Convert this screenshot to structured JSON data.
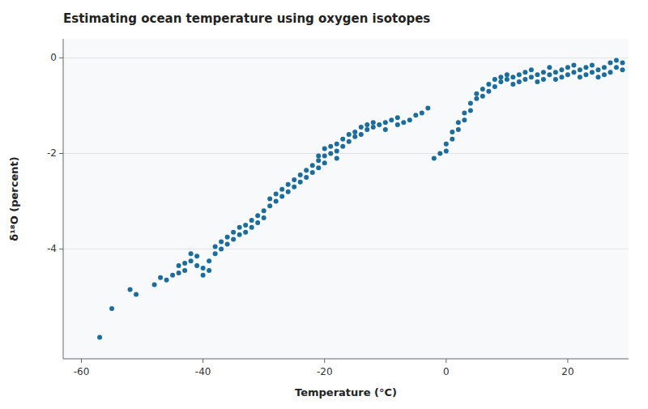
{
  "chart_data": {
    "type": "scatter",
    "title": "Estimating ocean temperature using oxygen isotopes",
    "xlabel": "Temperature (°C)",
    "ylabel": "δ¹⁸O (percent)",
    "xlim": [
      -63,
      30
    ],
    "ylim": [
      -6.3,
      0.4
    ],
    "xticks": [
      -60,
      -40,
      -20,
      0,
      20
    ],
    "yticks": [
      0,
      -2,
      -4
    ],
    "grid": "y",
    "color": "#1c6d9c",
    "x": [
      -57,
      -55,
      -52,
      -51,
      -48,
      -47,
      -46,
      -45,
      -44,
      -44,
      -43,
      -43,
      -42,
      -42,
      -41,
      -41,
      -40,
      -40,
      -39,
      -39,
      -38,
      -38,
      -37,
      -37,
      -36,
      -36,
      -35,
      -35,
      -34,
      -34,
      -33,
      -33,
      -32,
      -32,
      -31,
      -31,
      -30,
      -30,
      -29,
      -29,
      -28,
      -28,
      -27,
      -27,
      -26,
      -26,
      -25,
      -25,
      -24,
      -24,
      -23,
      -23,
      -22,
      -22,
      -21,
      -21,
      -21,
      -20,
      -20,
      -20,
      -19,
      -19,
      -18,
      -18,
      -18,
      -17,
      -17,
      -16,
      -16,
      -15,
      -15,
      -14,
      -14,
      -13,
      -13,
      -12,
      -12,
      -11,
      -10,
      -10,
      -9,
      -8,
      -8,
      -7,
      -6,
      -5,
      -4,
      -3,
      -2,
      -1,
      0,
      0,
      1,
      1,
      2,
      2,
      3,
      3,
      4,
      4,
      5,
      5,
      6,
      6,
      7,
      7,
      8,
      8,
      9,
      9,
      10,
      10,
      11,
      11,
      12,
      12,
      13,
      13,
      14,
      14,
      15,
      15,
      16,
      16,
      17,
      17,
      18,
      18,
      19,
      19,
      20,
      20,
      21,
      21,
      22,
      22,
      23,
      23,
      24,
      24,
      25,
      25,
      26,
      26,
      27,
      27,
      28,
      28,
      29,
      29
    ],
    "values": [
      -5.85,
      -5.25,
      -4.85,
      -4.95,
      -4.75,
      -4.6,
      -4.65,
      -4.55,
      -4.35,
      -4.5,
      -4.45,
      -4.3,
      -4.25,
      -4.1,
      -4.15,
      -4.35,
      -4.4,
      -4.55,
      -4.45,
      -4.25,
      -4.1,
      -3.95,
      -3.85,
      -4.0,
      -3.9,
      -3.75,
      -3.8,
      -3.65,
      -3.7,
      -3.55,
      -3.5,
      -3.65,
      -3.4,
      -3.55,
      -3.45,
      -3.3,
      -3.35,
      -3.2,
      -3.1,
      -2.95,
      -3.0,
      -2.85,
      -2.9,
      -2.75,
      -2.8,
      -2.65,
      -2.7,
      -2.55,
      -2.6,
      -2.45,
      -2.5,
      -2.35,
      -2.4,
      -2.25,
      -2.3,
      -2.15,
      -2.05,
      -2.2,
      -2.05,
      -1.9,
      -2.0,
      -1.85,
      -1.95,
      -1.8,
      -2.1,
      -1.85,
      -1.7,
      -1.75,
      -1.6,
      -1.65,
      -1.55,
      -1.6,
      -1.45,
      -1.5,
      -1.4,
      -1.45,
      -1.35,
      -1.4,
      -1.5,
      -1.35,
      -1.3,
      -1.4,
      -1.25,
      -1.35,
      -1.3,
      -1.2,
      -1.15,
      -1.05,
      -2.1,
      -2.0,
      -1.95,
      -1.8,
      -1.7,
      -1.55,
      -1.5,
      -1.35,
      -1.3,
      -1.15,
      -1.1,
      -0.95,
      -0.85,
      -0.75,
      -0.65,
      -0.8,
      -0.7,
      -0.55,
      -0.6,
      -0.45,
      -0.5,
      -0.4,
      -0.45,
      -0.35,
      -0.4,
      -0.55,
      -0.5,
      -0.35,
      -0.45,
      -0.3,
      -0.4,
      -0.25,
      -0.35,
      -0.5,
      -0.45,
      -0.3,
      -0.35,
      -0.2,
      -0.3,
      -0.45,
      -0.4,
      -0.25,
      -0.35,
      -0.2,
      -0.3,
      -0.15,
      -0.25,
      -0.4,
      -0.35,
      -0.2,
      -0.3,
      -0.15,
      -0.25,
      -0.4,
      -0.35,
      -0.2,
      -0.1,
      -0.3,
      -0.2,
      -0.05,
      -0.1,
      -0.25
    ]
  }
}
